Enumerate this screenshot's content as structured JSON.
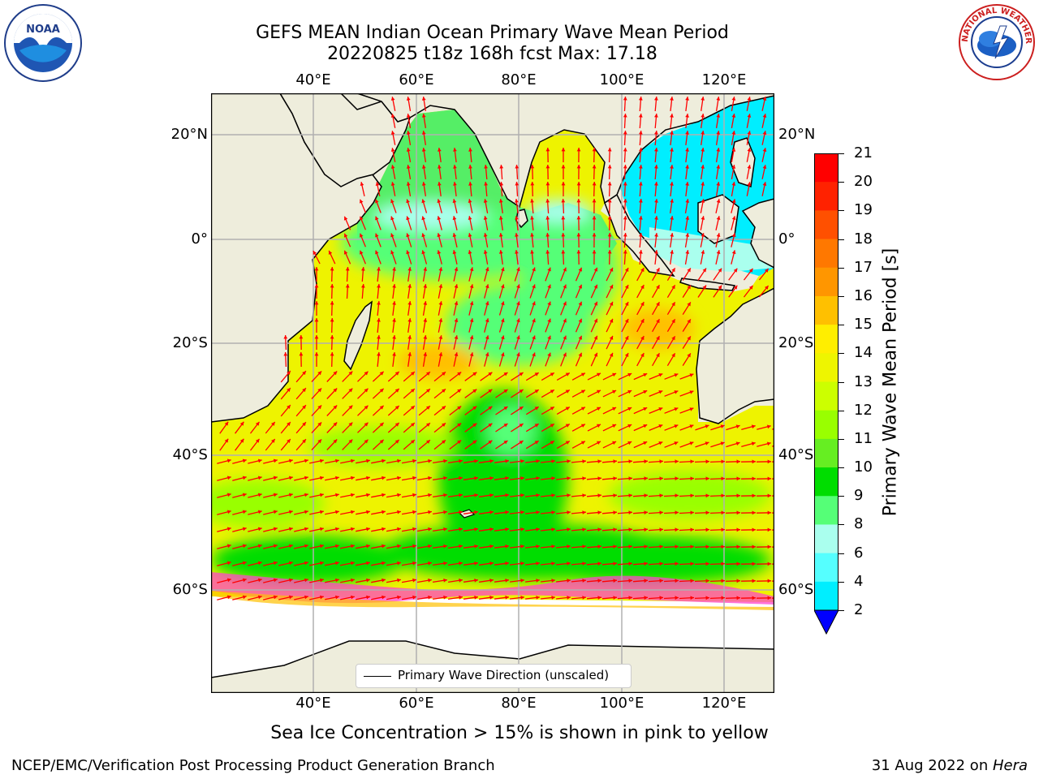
{
  "header": {
    "title_line1": "GEFS MEAN Indian Ocean Primary Wave Mean Period",
    "title_line2": "20220825 t18z 168h fcst   Max: 17.18",
    "noaa_logo_text": "NOAA",
    "noaa_ring_text": "NATIONAL OCEANIC AND ATMOSPHERIC ADMINISTRATION · U.S. DEPARTMENT OF COMMERCE",
    "nws_ring_text": "NATIONAL WEATHER SERVICE"
  },
  "map": {
    "lon_labels": [
      "40°E",
      "60°E",
      "80°E",
      "100°E",
      "120°E"
    ],
    "lat_labels_left": [
      "20°N",
      "0°",
      "20°S",
      "40°S",
      "60°S"
    ],
    "lat_labels_right": [
      "20°N",
      "0°",
      "20°S",
      "40°S",
      "60°S"
    ],
    "legend_label": "Primary Wave Direction (unscaled)",
    "colors": {
      "land": "#eeeddc",
      "arrow": "#ff0000",
      "grid": "#b0b0b0"
    }
  },
  "colorbar": {
    "label": "Primary Wave Mean Period [s]",
    "ticks": [
      "21",
      "20",
      "19",
      "18",
      "17",
      "16",
      "15",
      "14",
      "13",
      "12",
      "11",
      "10",
      "9",
      "8",
      "6",
      "4",
      "2"
    ],
    "colors_top_to_bottom": [
      "#ff0000",
      "#ff2200",
      "#ff5000",
      "#ff7800",
      "#ff9600",
      "#ffc000",
      "#ffee00",
      "#eef500",
      "#ccff00",
      "#99ff00",
      "#66ee22",
      "#00dd00",
      "#55ff77",
      "#aaffee",
      "#55ffff",
      "#00eeff",
      "#0077ff"
    ],
    "extend_color": "#0000ff"
  },
  "caption": "Sea Ice Concentration > 15% is shown in pink to yellow",
  "footer": {
    "left": "NCEP/EMC/Verification Post Processing Product Generation Branch",
    "date": "31 Aug 2022 on ",
    "machine": "Hera"
  }
}
